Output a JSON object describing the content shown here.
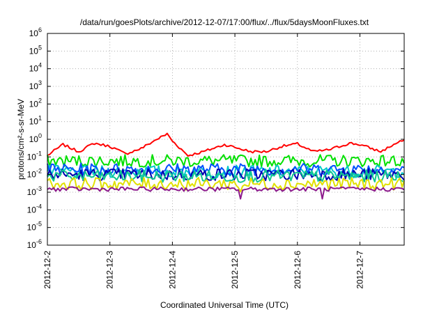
{
  "chart_data": {
    "type": "line",
    "title": "/data/run/goesPlots/archive/2012-12-07/17:00/flux/../flux/5daysMoonFluxes.txt",
    "xlabel": "Coordinated Universal Time (UTC)",
    "ylabel": "protons/cm²-s-sr-MeV",
    "y_scale": "log",
    "ylim": [
      1e-06,
      1000000.0
    ],
    "y_ticks": [
      {
        "value": 1e-06,
        "base": "10",
        "exp": "-6"
      },
      {
        "value": 1e-05,
        "base": "10",
        "exp": "-5"
      },
      {
        "value": 0.0001,
        "base": "10",
        "exp": "-4"
      },
      {
        "value": 0.001,
        "base": "10",
        "exp": "-3"
      },
      {
        "value": 0.01,
        "base": "10",
        "exp": "-2"
      },
      {
        "value": 0.1,
        "base": "10",
        "exp": "-1"
      },
      {
        "value": 1,
        "base": "10",
        "exp": "0"
      },
      {
        "value": 10,
        "base": "10",
        "exp": "1"
      },
      {
        "value": 100,
        "base": "10",
        "exp": "2"
      },
      {
        "value": 1000,
        "base": "10",
        "exp": "3"
      },
      {
        "value": 10000,
        "base": "10",
        "exp": "4"
      },
      {
        "value": 100000,
        "base": "10",
        "exp": "5"
      },
      {
        "value": 1000000,
        "base": "10",
        "exp": "6"
      }
    ],
    "x_range": [
      "2012-12-02T00:00",
      "2012-12-07T17:00"
    ],
    "x_ticks": [
      {
        "date": "2012-12-02",
        "label": "2012-12-2"
      },
      {
        "date": "2012-12-03",
        "label": "2012-12-3"
      },
      {
        "date": "2012-12-04",
        "label": "2012-12-4"
      },
      {
        "date": "2012-12-05",
        "label": "2012-12-5"
      },
      {
        "date": "2012-12-06",
        "label": "2012-12-6"
      },
      {
        "date": "2012-12-07",
        "label": "2012-12-7"
      }
    ],
    "grid": true,
    "legend": "none",
    "series": [
      {
        "color": "#ff0000",
        "points": [
          [
            "2012-12-02T00:00",
            0.12
          ],
          [
            "2012-12-02T06:00",
            0.5
          ],
          [
            "2012-12-02T12:00",
            0.2
          ],
          [
            "2012-12-02T18:00",
            0.6
          ],
          [
            "2012-12-03T00:00",
            0.4
          ],
          [
            "2012-12-03T06:00",
            0.15
          ],
          [
            "2012-12-03T12:00",
            0.3
          ],
          [
            "2012-12-03T18:00",
            1.0
          ],
          [
            "2012-12-03T22:00",
            2.0
          ],
          [
            "2012-12-04T00:00",
            0.8
          ],
          [
            "2012-12-04T06:00",
            0.12
          ],
          [
            "2012-12-04T12:00",
            0.2
          ],
          [
            "2012-12-04T20:00",
            0.5
          ],
          [
            "2012-12-05T00:00",
            0.35
          ],
          [
            "2012-12-05T06:00",
            0.2
          ],
          [
            "2012-12-05T12:00",
            0.2
          ],
          [
            "2012-12-05T18:00",
            0.4
          ],
          [
            "2012-12-06T00:00",
            0.55
          ],
          [
            "2012-12-06T06:00",
            0.2
          ],
          [
            "2012-12-06T12:00",
            0.25
          ],
          [
            "2012-12-06T20:00",
            0.6
          ],
          [
            "2012-12-07T00:00",
            0.5
          ],
          [
            "2012-12-07T08:00",
            0.2
          ],
          [
            "2012-12-07T13:00",
            0.5
          ],
          [
            "2012-12-07T17:00",
            0.9
          ]
        ]
      },
      {
        "color": "#00e000",
        "base": 0.06
      },
      {
        "color": "#00c8c8",
        "base": 0.015
      },
      {
        "color": "#0050ff",
        "base": 0.02
      },
      {
        "color": "#0000b0",
        "base": 0.01
      },
      {
        "color": "#10c890",
        "base": 0.008
      },
      {
        "color": "#e0e000",
        "base": 0.003
      },
      {
        "color": "#8c1a8c",
        "base": 0.0015
      }
    ]
  }
}
